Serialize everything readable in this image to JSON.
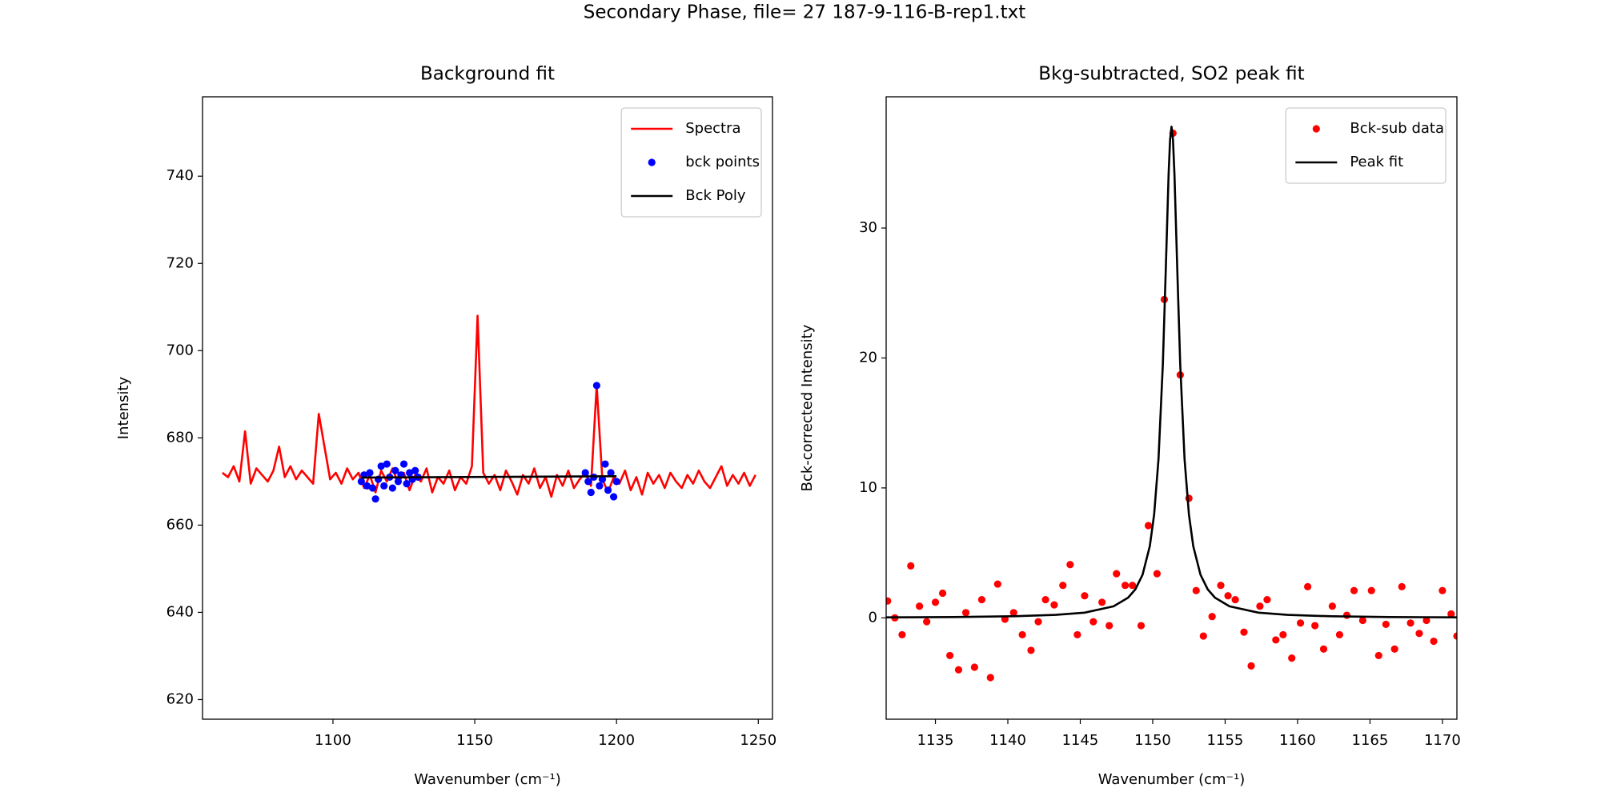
{
  "title": "Secondary Phase, file= 27 187-9-116-B-rep1.txt",
  "chart_data": [
    {
      "type": "line",
      "title": "Background fit",
      "x_label": "Wavenumber (cm⁻¹)",
      "y_label": "Intensity",
      "xlim": [
        1054,
        1255
      ],
      "ylim": [
        615.5,
        758.2
      ],
      "xticks": [
        1100,
        1150,
        1200,
        1250
      ],
      "yticks": [
        620,
        640,
        660,
        680,
        700,
        720,
        740
      ],
      "legend": "upper right",
      "series": [
        {
          "name": "Spectra",
          "style": "line",
          "color": "#ff0000",
          "x": [
            1061,
            1063,
            1065,
            1067,
            1069,
            1071,
            1073,
            1075,
            1077,
            1079,
            1081,
            1083,
            1085,
            1087,
            1089,
            1091,
            1093,
            1095,
            1097,
            1099,
            1101,
            1103,
            1105,
            1107,
            1109,
            1111,
            1113,
            1115,
            1117,
            1119,
            1121,
            1123,
            1125,
            1127,
            1129,
            1131,
            1133,
            1135,
            1137,
            1139,
            1141,
            1143,
            1145,
            1147,
            1149,
            1151,
            1153,
            1155,
            1157,
            1159,
            1161,
            1163,
            1165,
            1167,
            1169,
            1171,
            1173,
            1175,
            1177,
            1179,
            1181,
            1183,
            1185,
            1187,
            1189,
            1191,
            1193,
            1195,
            1197,
            1199,
            1201,
            1203,
            1205,
            1207,
            1209,
            1211,
            1213,
            1215,
            1217,
            1219,
            1221,
            1223,
            1225,
            1227,
            1229,
            1231,
            1233,
            1235,
            1237,
            1239,
            1241,
            1243,
            1245,
            1247,
            1249
          ],
          "values": [
            672.0,
            671.0,
            673.5,
            670.0,
            681.5,
            669.5,
            673.0,
            671.5,
            670.0,
            672.5,
            678.0,
            671.0,
            673.5,
            670.5,
            672.5,
            671.0,
            669.5,
            685.5,
            678.0,
            670.5,
            672.0,
            669.5,
            673.0,
            670.5,
            672.0,
            668.5,
            671.5,
            667.5,
            672.5,
            670.0,
            673.0,
            669.5,
            672.0,
            668.0,
            671.5,
            670.0,
            673.0,
            667.5,
            671.0,
            669.5,
            672.5,
            668.0,
            671.0,
            669.5,
            673.5,
            708.0,
            672.0,
            669.5,
            671.5,
            668.0,
            672.5,
            670.0,
            667.0,
            671.5,
            669.5,
            673.0,
            668.5,
            671.0,
            666.5,
            671.5,
            669.0,
            672.5,
            668.5,
            670.5,
            672.0,
            669.0,
            692.0,
            670.5,
            667.5,
            671.0,
            669.5,
            672.5,
            668.0,
            671.0,
            667.0,
            672.0,
            669.5,
            671.5,
            668.5,
            672.0,
            670.0,
            668.5,
            671.5,
            669.5,
            672.5,
            670.0,
            668.5,
            671.0,
            673.5,
            669.0,
            671.5,
            669.5,
            672.0,
            669.0,
            671.5
          ]
        },
        {
          "name": "bck points",
          "style": "markers",
          "color": "#0000ff",
          "x": [
            1110,
            1111,
            1112,
            1113,
            1114,
            1115,
            1116,
            1117,
            1118,
            1119,
            1120,
            1121,
            1122,
            1123,
            1124,
            1125,
            1126,
            1127,
            1128,
            1129,
            1130,
            1189,
            1190,
            1191,
            1192,
            1193,
            1194,
            1195,
            1196,
            1197,
            1198,
            1199,
            1200
          ],
          "values": [
            670,
            671.5,
            669,
            672,
            668.5,
            666,
            670.5,
            673.5,
            669,
            674,
            671,
            668.5,
            672.5,
            670,
            671.5,
            674,
            669.5,
            672,
            670.5,
            672.5,
            671,
            672,
            670,
            667.5,
            671,
            692,
            669,
            670.5,
            674,
            668,
            672,
            666.5,
            670
          ]
        },
        {
          "name": "Bck Poly",
          "style": "line",
          "color": "#000000",
          "x": [
            1110,
            1200
          ],
          "values": [
            670.9,
            671.2
          ]
        }
      ]
    },
    {
      "type": "line",
      "title": "Bkg-subtracted, SO2 peak fit",
      "x_label": "Wavenumber (cm⁻¹)",
      "y_label": "Bck-corrected Intensity",
      "xlim": [
        1131.6,
        1171.0
      ],
      "ylim": [
        -7.8,
        40.1
      ],
      "xticks": [
        1135,
        1140,
        1145,
        1150,
        1155,
        1160,
        1165,
        1170
      ],
      "yticks": [
        0,
        10,
        20,
        30
      ],
      "legend": "upper right",
      "series": [
        {
          "name": "Bck-sub data",
          "style": "markers",
          "color": "#ff0000",
          "x": [
            1131.7,
            1132.2,
            1132.7,
            1133.3,
            1133.9,
            1134.4,
            1135.0,
            1135.5,
            1136.0,
            1136.6,
            1137.1,
            1137.7,
            1138.2,
            1138.8,
            1139.3,
            1139.8,
            1140.4,
            1141.0,
            1141.6,
            1142.1,
            1142.6,
            1143.2,
            1143.8,
            1144.3,
            1144.8,
            1145.3,
            1145.9,
            1146.5,
            1147.0,
            1147.5,
            1148.1,
            1148.6,
            1149.2,
            1149.7,
            1150.3,
            1150.8,
            1151.4,
            1151.9,
            1152.5,
            1153.0,
            1153.5,
            1154.1,
            1154.7,
            1155.2,
            1155.7,
            1156.3,
            1156.8,
            1157.4,
            1157.9,
            1158.5,
            1159.0,
            1159.6,
            1160.2,
            1160.7,
            1161.2,
            1161.8,
            1162.4,
            1162.9,
            1163.4,
            1163.9,
            1164.5,
            1165.1,
            1165.6,
            1166.1,
            1166.7,
            1167.2,
            1167.8,
            1168.4,
            1168.9,
            1169.4,
            1170.0,
            1170.6,
            1171.0
          ],
          "values": [
            1.3,
            0.0,
            -1.3,
            4.0,
            0.9,
            -0.3,
            1.2,
            1.9,
            -2.9,
            -4.0,
            0.4,
            -3.8,
            1.4,
            -4.6,
            2.6,
            -0.1,
            0.4,
            -1.3,
            -2.5,
            -0.3,
            1.4,
            1.0,
            2.5,
            4.1,
            -1.3,
            1.7,
            -0.3,
            1.2,
            -0.6,
            3.4,
            2.5,
            2.5,
            -0.6,
            7.1,
            3.4,
            24.5,
            37.3,
            18.7,
            9.2,
            2.1,
            -1.4,
            0.1,
            2.5,
            1.7,
            1.4,
            -1.1,
            -3.7,
            0.9,
            1.4,
            -1.7,
            -1.3,
            -3.1,
            -0.4,
            2.4,
            -0.6,
            -2.4,
            0.9,
            -1.3,
            0.2,
            2.1,
            -0.2,
            2.1,
            -2.9,
            -0.5,
            -2.4,
            2.4,
            -0.4,
            -1.2,
            -0.2,
            -1.8,
            2.1,
            0.3,
            -1.4
          ]
        },
        {
          "name": "Peak fit",
          "style": "line",
          "color": "#000000",
          "x": [
            1131.6,
            1136.3,
            1140.3,
            1143.3,
            1145.3,
            1147.3,
            1148.3,
            1148.8,
            1149.3,
            1149.8,
            1150.1,
            1150.4,
            1150.7,
            1150.9,
            1151.1,
            1151.2,
            1151.3,
            1151.4,
            1151.5,
            1151.7,
            1151.9,
            1152.2,
            1152.5,
            1152.8,
            1153.3,
            1153.8,
            1154.3,
            1155.3,
            1157.3,
            1159.3,
            1162.3,
            1166.3,
            1171.0
          ],
          "values": [
            0.04,
            0.06,
            0.12,
            0.23,
            0.4,
            0.89,
            1.55,
            2.19,
            3.32,
            5.52,
            7.96,
            12.2,
            19.5,
            26.7,
            34.2,
            36.8,
            37.8,
            36.8,
            34.2,
            26.7,
            19.5,
            12.2,
            7.96,
            5.52,
            3.32,
            2.19,
            1.55,
            0.89,
            0.4,
            0.23,
            0.12,
            0.06,
            0.04
          ]
        }
      ]
    }
  ]
}
